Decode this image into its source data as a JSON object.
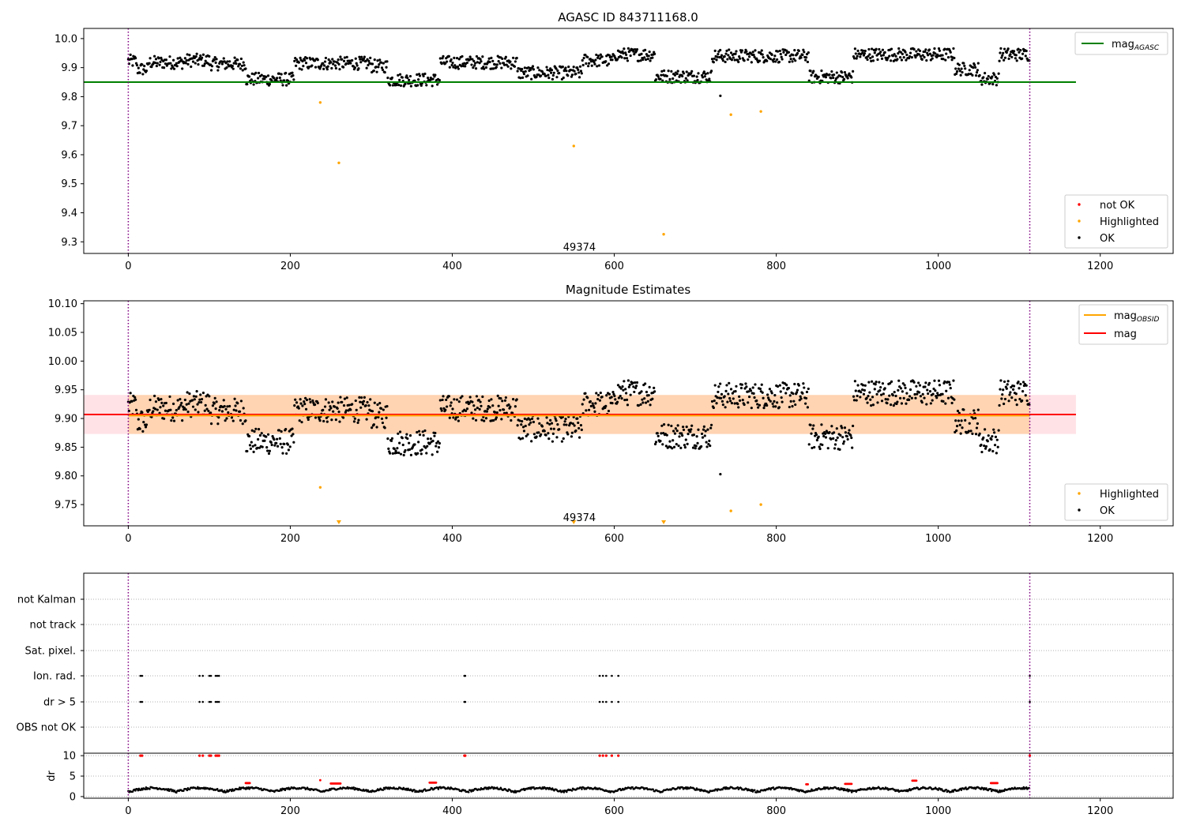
{
  "chart_data": [
    {
      "type": "scatter",
      "title": "AGASC ID 843711168.0",
      "xlabel": "",
      "ylabel": "",
      "xlim": [
        -55,
        1290
      ],
      "ylim": [
        9.26,
        10.035
      ],
      "x_ticks": [
        0,
        200,
        400,
        600,
        800,
        1000,
        1200
      ],
      "y_ticks": [
        9.3,
        9.4,
        9.5,
        9.6,
        9.7,
        9.8,
        9.9,
        10.0
      ],
      "y_tick_decimals": 1,
      "vlines": [
        0,
        1113
      ],
      "annotation": {
        "text": "49374",
        "x": 557,
        "y": 9.28
      },
      "mag_agasc": 9.85,
      "mag_agasc_range": [
        -55,
        1170
      ],
      "legend_upper": {
        "placement": "upper-right",
        "entries": [
          {
            "label": "mag",
            "sub": "AGASC",
            "color": "#008000"
          }
        ]
      },
      "legend_lower": {
        "placement": "lower-right",
        "entries": [
          {
            "label": "not OK",
            "color": "#ff0000"
          },
          {
            "label": "Highlighted",
            "color": "#ffa500"
          },
          {
            "label": "OK",
            "color": "#000000"
          }
        ]
      },
      "highlighted_points": [
        {
          "x": 237,
          "y": 9.78
        },
        {
          "x": 260,
          "y": 9.572
        },
        {
          "x": 550,
          "y": 9.63
        },
        {
          "x": 661,
          "y": 9.326
        },
        {
          "x": 744,
          "y": 9.738
        },
        {
          "x": 781,
          "y": 9.749
        }
      ],
      "outlier_ok_points": [
        {
          "x": 731,
          "y": 9.803
        }
      ]
    },
    {
      "type": "scatter",
      "title": "Magnitude Estimates",
      "xlabel": "",
      "ylabel": "",
      "xlim": [
        -55,
        1290
      ],
      "ylim": [
        9.713,
        10.105
      ],
      "x_ticks": [
        0,
        200,
        400,
        600,
        800,
        1000,
        1200
      ],
      "y_ticks": [
        9.75,
        9.8,
        9.85,
        9.9,
        9.95,
        10.0,
        10.05,
        10.1
      ],
      "y_tick_decimals": 2,
      "vlines": [
        0,
        1113
      ],
      "annotation": {
        "text": "49374",
        "x": 557,
        "y": 9.727
      },
      "mag": 9.907,
      "mag_range": [
        -55,
        1170
      ],
      "mag_obsid": 9.905,
      "mag_obsid_range": [
        0,
        1113
      ],
      "band_pink": [
        9.873,
        9.941
      ],
      "band_orange": [
        9.873,
        9.941
      ],
      "legend_upper": {
        "placement": "upper-right",
        "entries": [
          {
            "label": "mag",
            "sub": "OBSID",
            "color": "#ffa500"
          },
          {
            "label": "mag",
            "sub": "",
            "color": "#ff0000"
          }
        ]
      },
      "legend_lower": {
        "placement": "lower-right",
        "entries": [
          {
            "label": "Highlighted",
            "color": "#ffa500"
          },
          {
            "label": "OK",
            "color": "#000000"
          }
        ]
      },
      "highlighted_points": [
        {
          "x": 237,
          "y": 9.78
        },
        {
          "x": 744,
          "y": 9.739
        },
        {
          "x": 781,
          "y": 9.75
        }
      ],
      "offscale_markers": [
        260,
        550,
        661
      ],
      "outlier_ok_points": [
        {
          "x": 731,
          "y": 9.803
        }
      ]
    },
    {
      "type": "scatter",
      "title": "",
      "xlabel": "",
      "ylabel": "",
      "xlim": [
        -55,
        1290
      ],
      "x_ticks": [
        0,
        200,
        400,
        600,
        800,
        1000,
        1200
      ],
      "vlines": [
        0,
        1113
      ],
      "categories": [
        "not Kalman",
        "not track",
        "Sat. pixel.",
        "Ion. rad.",
        "dr > 5",
        "OBS not OK"
      ],
      "flag_x": [
        15,
        17,
        88,
        92,
        100,
        102,
        108,
        110,
        112,
        415,
        416,
        582,
        586,
        590,
        597,
        605,
        1113
      ],
      "flags": {
        "Ion. rad.": true,
        "dr > 5": true
      }
    },
    {
      "type": "scatter",
      "title": "",
      "xlabel": "",
      "ylabel": "dr",
      "xlim": [
        -55,
        1290
      ],
      "ylim": [
        -0.4,
        10.6
      ],
      "x_ticks": [
        0,
        200,
        400,
        600,
        800,
        1000,
        1200
      ],
      "y_ticks": [
        0,
        5,
        10
      ],
      "vlines": [
        0,
        1113
      ],
      "red_high_x": [
        15,
        17,
        88,
        92,
        100,
        102,
        108,
        110,
        112,
        415,
        416,
        582,
        586,
        590,
        597,
        605,
        1113
      ],
      "red_segments": [
        {
          "x0": 145,
          "x1": 150,
          "y": 3.3
        },
        {
          "x0": 237,
          "x1": 237,
          "y": 4.0
        },
        {
          "x0": 250,
          "x1": 262,
          "y": 3.2
        },
        {
          "x0": 372,
          "x1": 380,
          "y": 3.4
        },
        {
          "x0": 837,
          "x1": 839,
          "y": 3.0
        },
        {
          "x0": 885,
          "x1": 893,
          "y": 3.1
        },
        {
          "x0": 968,
          "x1": 973,
          "y": 3.9
        },
        {
          "x0": 1065,
          "x1": 1073,
          "y": 3.3
        }
      ]
    }
  ]
}
